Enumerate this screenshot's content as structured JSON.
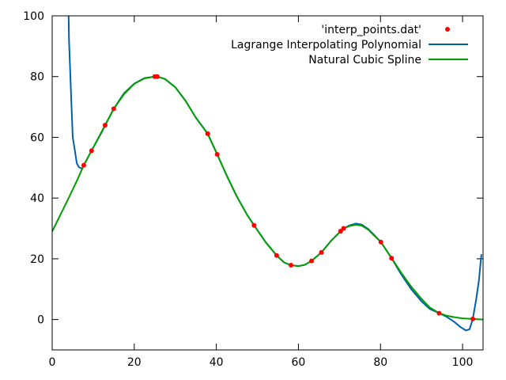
{
  "chart_data": {
    "type": "line",
    "title": "",
    "xlabel": "",
    "ylabel": "",
    "xlim": [
      0,
      105
    ],
    "ylim": [
      -10,
      100
    ],
    "grid": false,
    "legend_position": "top-right",
    "x_ticks": [
      0,
      20,
      40,
      60,
      80,
      100
    ],
    "y_ticks": [
      0,
      20,
      40,
      60,
      80,
      100
    ],
    "x_tick_labels": [
      "0",
      "20",
      "40",
      "60",
      "80",
      "100"
    ],
    "y_tick_labels": [
      "0",
      "20",
      "40",
      "60",
      "80",
      "100"
    ],
    "series": [
      {
        "name": "'interp_points.dat'",
        "style": "points",
        "color": "#ff0000",
        "points": [
          [
            7.7,
            50.8
          ],
          [
            9.6,
            55.6
          ],
          [
            12.9,
            64.0
          ],
          [
            15.0,
            69.4
          ],
          [
            25.0,
            80.0
          ],
          [
            25.6,
            80.0
          ],
          [
            37.9,
            61.2
          ],
          [
            40.2,
            54.4
          ],
          [
            49.2,
            31.0
          ],
          [
            54.7,
            21.1
          ],
          [
            58.2,
            17.9
          ],
          [
            63.2,
            19.3
          ],
          [
            65.6,
            22.1
          ],
          [
            70.3,
            29.1
          ],
          [
            71.0,
            30.0
          ],
          [
            80.1,
            25.5
          ],
          [
            82.7,
            20.2
          ],
          [
            94.3,
            2.1
          ],
          [
            102.5,
            0.2
          ]
        ]
      },
      {
        "name": "Lagrange Interpolating Polynomial",
        "style": "line",
        "color": "#0060ad",
        "points": [
          [
            4.0,
            100
          ],
          [
            4.1,
            92
          ],
          [
            4.6,
            74
          ],
          [
            5.0,
            60.0
          ],
          [
            5.5,
            56
          ],
          [
            6.0,
            51.5
          ],
          [
            6.5,
            50.2
          ],
          [
            7.3,
            49.7
          ],
          [
            7.7,
            50.8
          ],
          [
            9.6,
            55.6
          ],
          [
            12.0,
            61.5
          ],
          [
            12.9,
            64.0
          ],
          [
            15.0,
            69.4
          ],
          [
            17.5,
            74.5
          ],
          [
            20.0,
            77.7
          ],
          [
            22.5,
            79.5
          ],
          [
            25.0,
            80.0
          ],
          [
            25.6,
            80.0
          ],
          [
            27.5,
            79.2
          ],
          [
            30.0,
            76.5
          ],
          [
            32.5,
            72.0
          ],
          [
            35.0,
            66.5
          ],
          [
            37.9,
            61.2
          ],
          [
            40.2,
            54.4
          ],
          [
            42.5,
            47.5
          ],
          [
            45.0,
            40.5
          ],
          [
            47.5,
            34.5
          ],
          [
            49.2,
            31.0
          ],
          [
            52.0,
            25.5
          ],
          [
            54.7,
            21.1
          ],
          [
            56.5,
            18.8
          ],
          [
            58.2,
            17.9
          ],
          [
            60.0,
            17.6
          ],
          [
            61.5,
            18.0
          ],
          [
            63.2,
            19.3
          ],
          [
            65.6,
            22.1
          ],
          [
            68.0,
            26.0
          ],
          [
            70.3,
            29.1
          ],
          [
            71.0,
            30.0
          ],
          [
            72.5,
            31.0
          ],
          [
            74.0,
            31.6
          ],
          [
            75.5,
            31.2
          ],
          [
            77.0,
            29.8
          ],
          [
            78.5,
            27.8
          ],
          [
            80.1,
            25.5
          ],
          [
            82.7,
            20.2
          ],
          [
            85.0,
            15.0
          ],
          [
            87.5,
            10.0
          ],
          [
            90.0,
            6.0
          ],
          [
            92.0,
            3.5
          ],
          [
            94.3,
            2.1
          ],
          [
            96.0,
            1.0
          ],
          [
            98.0,
            -0.8
          ],
          [
            99.5,
            -2.5
          ],
          [
            100.8,
            -3.6
          ],
          [
            101.7,
            -3.2
          ],
          [
            102.5,
            0.2
          ],
          [
            103.3,
            6.5
          ],
          [
            104.0,
            13.0
          ],
          [
            104.6,
            21.5
          ]
        ]
      },
      {
        "name": "Natural Cubic Spline",
        "style": "line",
        "color": "#009e00",
        "points": [
          [
            0.0,
            29.0
          ],
          [
            2.0,
            34.5
          ],
          [
            4.0,
            40.0
          ],
          [
            6.0,
            45.6
          ],
          [
            7.7,
            50.8
          ],
          [
            9.6,
            55.6
          ],
          [
            12.9,
            64.0
          ],
          [
            15.0,
            69.4
          ],
          [
            17.5,
            74.2
          ],
          [
            20.0,
            77.6
          ],
          [
            22.5,
            79.4
          ],
          [
            25.0,
            80.0
          ],
          [
            25.6,
            80.0
          ],
          [
            27.5,
            79.2
          ],
          [
            30.0,
            76.5
          ],
          [
            32.5,
            72.0
          ],
          [
            35.0,
            66.5
          ],
          [
            37.9,
            61.2
          ],
          [
            40.2,
            54.4
          ],
          [
            42.5,
            47.5
          ],
          [
            45.0,
            40.5
          ],
          [
            47.5,
            34.5
          ],
          [
            49.2,
            31.0
          ],
          [
            52.0,
            25.5
          ],
          [
            54.7,
            21.1
          ],
          [
            56.5,
            18.8
          ],
          [
            58.2,
            17.9
          ],
          [
            60.0,
            17.6
          ],
          [
            61.5,
            18.0
          ],
          [
            63.2,
            19.3
          ],
          [
            65.6,
            22.1
          ],
          [
            68.0,
            26.0
          ],
          [
            70.3,
            29.1
          ],
          [
            71.0,
            30.0
          ],
          [
            72.5,
            30.8
          ],
          [
            74.0,
            31.2
          ],
          [
            75.5,
            30.9
          ],
          [
            77.0,
            29.6
          ],
          [
            78.5,
            27.6
          ],
          [
            80.1,
            25.5
          ],
          [
            82.7,
            20.2
          ],
          [
            85.0,
            15.5
          ],
          [
            87.5,
            10.8
          ],
          [
            90.0,
            6.8
          ],
          [
            92.0,
            4.0
          ],
          [
            94.3,
            2.1
          ],
          [
            96.0,
            1.3
          ],
          [
            98.0,
            0.8
          ],
          [
            100.0,
            0.4
          ],
          [
            102.5,
            0.2
          ],
          [
            105.0,
            0.0
          ]
        ]
      }
    ]
  }
}
